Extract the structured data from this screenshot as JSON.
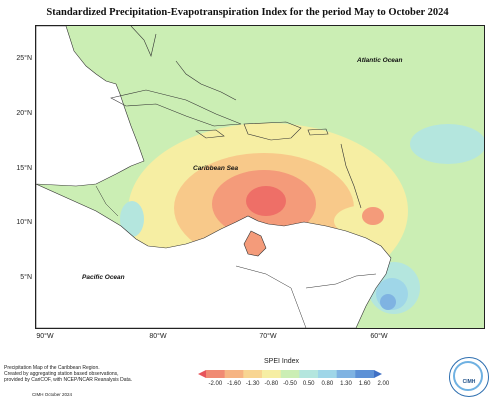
{
  "title": "Standardized Precipitation-Evapotranspiration Index for the period May to October 2024",
  "map": {
    "latitude_labels": [
      "25°N",
      "20°N",
      "15°N",
      "10°N",
      "5°N"
    ],
    "longitude_labels": [
      "90°W",
      "80°W",
      "70°W",
      "60°W"
    ],
    "place_labels": {
      "atlantic": "Atlantic Ocean",
      "caribbean": "Caribbean Sea",
      "pacific": "Pacific Ocean"
    },
    "colors": {
      "normal": "#cbeeb4",
      "dry_mild": "#f6eea3",
      "dry_moderate": "#f8c98a",
      "dry_severe": "#f49b7a",
      "dry_extreme": "#ee6f67",
      "wet_mild": "#b4e6de",
      "wet_moderate": "#9fd6e8",
      "wet_severe": "#7fb3e2"
    }
  },
  "legend": {
    "title": "SPEI Index",
    "ticks": [
      "-2.00",
      "-1.60",
      "-1.30",
      "-0.80",
      "-0.50",
      "0.50",
      "0.80",
      "1.30",
      "1.60",
      "2.00"
    ],
    "colors": [
      "#e7545a",
      "#f08a73",
      "#f6b483",
      "#f8d592",
      "#f6eea3",
      "#cbeeb4",
      "#b4e6de",
      "#9fd6e8",
      "#7fb3e2",
      "#5d91d6",
      "#3f6fc4"
    ]
  },
  "footnote": {
    "lines": [
      "Precipitation Map of the Caribbean Region.",
      "Created by aggregating station based observations,",
      "provided by CariCOF, with NCEP/NCAR Reanalysis Data."
    ],
    "credit": "CIMH October 2024"
  },
  "logo": {
    "text": "CIMH"
  }
}
